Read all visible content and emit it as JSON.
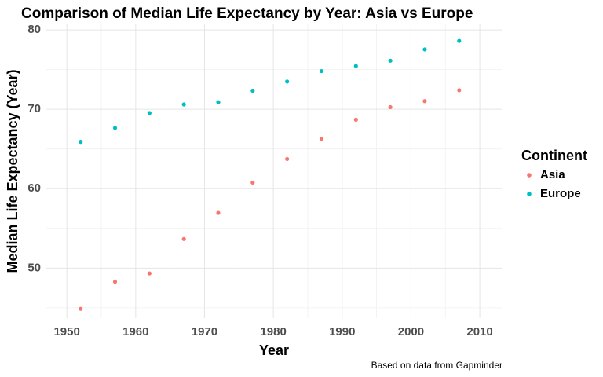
{
  "chart_data": {
    "type": "scatter",
    "title": "Comparison of Median Life Expectancy by Year: Asia vs Europe",
    "x_label": "Year",
    "y_label": "Median Life Expectancy (Year)",
    "caption": "Based on data from Gapminder",
    "legend_title": "Continent",
    "legend_position": "right",
    "grid": true,
    "x": [
      1952,
      1957,
      1962,
      1967,
      1972,
      1977,
      1982,
      1987,
      1992,
      1997,
      2002,
      2007
    ],
    "series": [
      {
        "name": "Asia",
        "color": "#F8766D",
        "values": [
          44.87,
          48.28,
          49.33,
          53.66,
          56.95,
          60.77,
          63.74,
          66.3,
          68.69,
          70.27,
          71.03,
          72.4
        ]
      },
      {
        "name": "Europe",
        "color": "#00BFC4",
        "values": [
          65.9,
          67.65,
          69.53,
          70.61,
          70.89,
          72.34,
          73.49,
          74.81,
          75.45,
          76.12,
          77.54,
          78.61
        ]
      }
    ],
    "xlim": [
      1946.9,
      2013.3
    ],
    "xticks": [
      1950,
      1960,
      1970,
      1980,
      1990,
      2000,
      2010
    ],
    "x_minor_grid": [
      1955,
      1965,
      1975,
      1985,
      1995,
      2005
    ],
    "ylim": [
      43.7,
      80.8
    ],
    "yticks": [
      50,
      60,
      70,
      80
    ],
    "y_minor_grid": [
      45,
      55,
      65,
      75
    ]
  }
}
